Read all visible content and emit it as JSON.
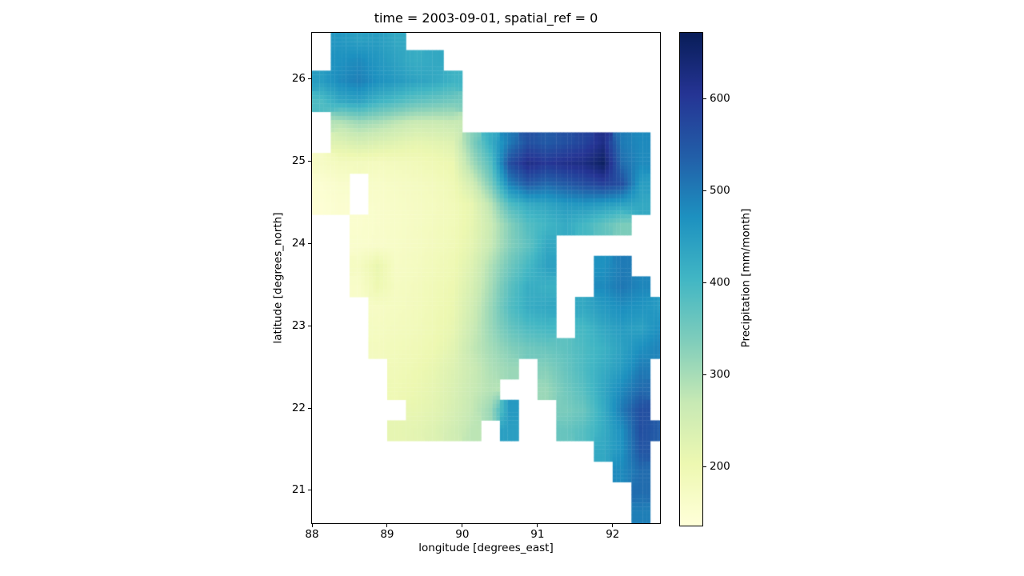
{
  "figure": {
    "background": "#ffffff"
  },
  "chart_data": {
    "type": "heatmap",
    "title": "time = 2003-09-01, spatial_ref = 0",
    "xlabel": "longitude [degrees_east]",
    "ylabel": "latitude [degrees_north]",
    "colorbar_label": "Precipitation [mm/month]",
    "xlim": [
      88.0,
      92.63
    ],
    "ylim": [
      20.6,
      26.56
    ],
    "x_ticks": [
      88,
      89,
      90,
      91,
      92
    ],
    "y_ticks": [
      21,
      22,
      23,
      24,
      25,
      26
    ],
    "colorbar_ticks": [
      200,
      300,
      400,
      500,
      600
    ],
    "vmin": 136,
    "vmax": 672,
    "colormap": "YlGnBu",
    "colormap_stops": [
      "#ffffd9",
      "#edf8b1",
      "#c7e9b4",
      "#7fcdbb",
      "#41b6c4",
      "#1d91c0",
      "#225ea8",
      "#253494",
      "#081d58"
    ],
    "legend_position": "right-colorbar",
    "grid_lines": false,
    "grid": {
      "units": "mm/month",
      "lon_origin": 88.0,
      "lat_origin": 26.6,
      "dlon": 0.25,
      "dlat": 0.25,
      "ncols": 19,
      "nrows": 24,
      "values": [
        [
          null,
          460,
          445,
          450,
          430,
          null,
          null,
          null,
          null,
          null,
          null,
          null,
          null,
          null,
          null,
          null,
          null,
          null,
          null
        ],
        [
          null,
          470,
          480,
          460,
          440,
          420,
          430,
          null,
          null,
          null,
          null,
          null,
          null,
          null,
          null,
          null,
          null,
          null,
          null
        ],
        [
          450,
          480,
          495,
          470,
          455,
          440,
          430,
          410,
          null,
          null,
          null,
          null,
          null,
          null,
          null,
          null,
          null,
          null,
          null
        ],
        [
          390,
          430,
          440,
          410,
          390,
          370,
          360,
          350,
          null,
          null,
          null,
          null,
          null,
          null,
          null,
          null,
          null,
          null,
          null
        ],
        [
          null,
          290,
          310,
          300,
          280,
          265,
          265,
          270,
          null,
          null,
          null,
          null,
          null,
          null,
          null,
          null,
          null,
          null,
          null
        ],
        [
          null,
          230,
          245,
          235,
          225,
          215,
          220,
          230,
          330,
          420,
          500,
          560,
          545,
          560,
          580,
          620,
          500,
          480,
          null
        ],
        [
          170,
          180,
          180,
          178,
          182,
          188,
          195,
          205,
          300,
          380,
          560,
          620,
          600,
          615,
          625,
          660,
          520,
          480,
          null
        ],
        [
          150,
          160,
          null,
          165,
          170,
          176,
          182,
          196,
          250,
          340,
          490,
          545,
          525,
          545,
          565,
          585,
          560,
          450,
          null
        ],
        [
          145,
          152,
          null,
          160,
          166,
          172,
          178,
          188,
          212,
          280,
          385,
          425,
          435,
          455,
          460,
          450,
          440,
          430,
          null
        ],
        [
          null,
          null,
          155,
          160,
          165,
          172,
          180,
          188,
          214,
          262,
          330,
          385,
          405,
          425,
          400,
          370,
          340,
          null,
          null
        ],
        [
          null,
          null,
          158,
          162,
          167,
          174,
          182,
          192,
          218,
          268,
          330,
          372,
          430,
          null,
          null,
          null,
          null,
          null,
          null
        ],
        [
          null,
          null,
          175,
          210,
          170,
          177,
          187,
          197,
          232,
          292,
          352,
          400,
          442,
          null,
          null,
          470,
          500,
          null,
          null
        ],
        [
          null,
          null,
          163,
          200,
          174,
          181,
          191,
          202,
          242,
          300,
          372,
          420,
          415,
          null,
          null,
          480,
          505,
          485,
          null
        ],
        [
          null,
          null,
          null,
          170,
          176,
          183,
          193,
          207,
          252,
          312,
          382,
          422,
          432,
          null,
          430,
          455,
          475,
          465,
          455
        ],
        [
          null,
          null,
          null,
          176,
          181,
          187,
          197,
          212,
          262,
          312,
          362,
          392,
          402,
          null,
          400,
          432,
          452,
          442,
          475
        ],
        [
          null,
          null,
          null,
          180,
          186,
          192,
          202,
          222,
          272,
          302,
          332,
          352,
          362,
          372,
          392,
          412,
          442,
          472,
          490
        ],
        [
          null,
          null,
          null,
          null,
          190,
          200,
          212,
          232,
          262,
          292,
          312,
          null,
          332,
          362,
          392,
          422,
          452,
          500,
          null
        ],
        [
          null,
          null,
          null,
          null,
          196,
          206,
          217,
          237,
          267,
          287,
          null,
          null,
          312,
          352,
          382,
          432,
          482,
          522,
          null
        ],
        [
          null,
          null,
          null,
          null,
          null,
          212,
          222,
          242,
          272,
          310,
          455,
          null,
          null,
          342,
          362,
          422,
          502,
          562,
          null
        ],
        [
          null,
          null,
          null,
          null,
          215,
          220,
          232,
          252,
          280,
          null,
          445,
          null,
          null,
          362,
          382,
          422,
          472,
          562,
          540
        ],
        [
          null,
          null,
          null,
          null,
          null,
          null,
          null,
          null,
          null,
          null,
          null,
          null,
          null,
          null,
          null,
          430,
          470,
          550,
          null
        ],
        [
          null,
          null,
          null,
          null,
          null,
          null,
          null,
          null,
          null,
          null,
          null,
          null,
          null,
          null,
          null,
          null,
          480,
          520,
          null
        ],
        [
          null,
          null,
          null,
          null,
          null,
          null,
          null,
          null,
          null,
          null,
          null,
          null,
          null,
          null,
          null,
          null,
          null,
          520,
          null
        ],
        [
          null,
          null,
          null,
          null,
          null,
          null,
          null,
          null,
          null,
          null,
          null,
          null,
          null,
          null,
          null,
          null,
          null,
          495,
          null
        ]
      ]
    }
  }
}
